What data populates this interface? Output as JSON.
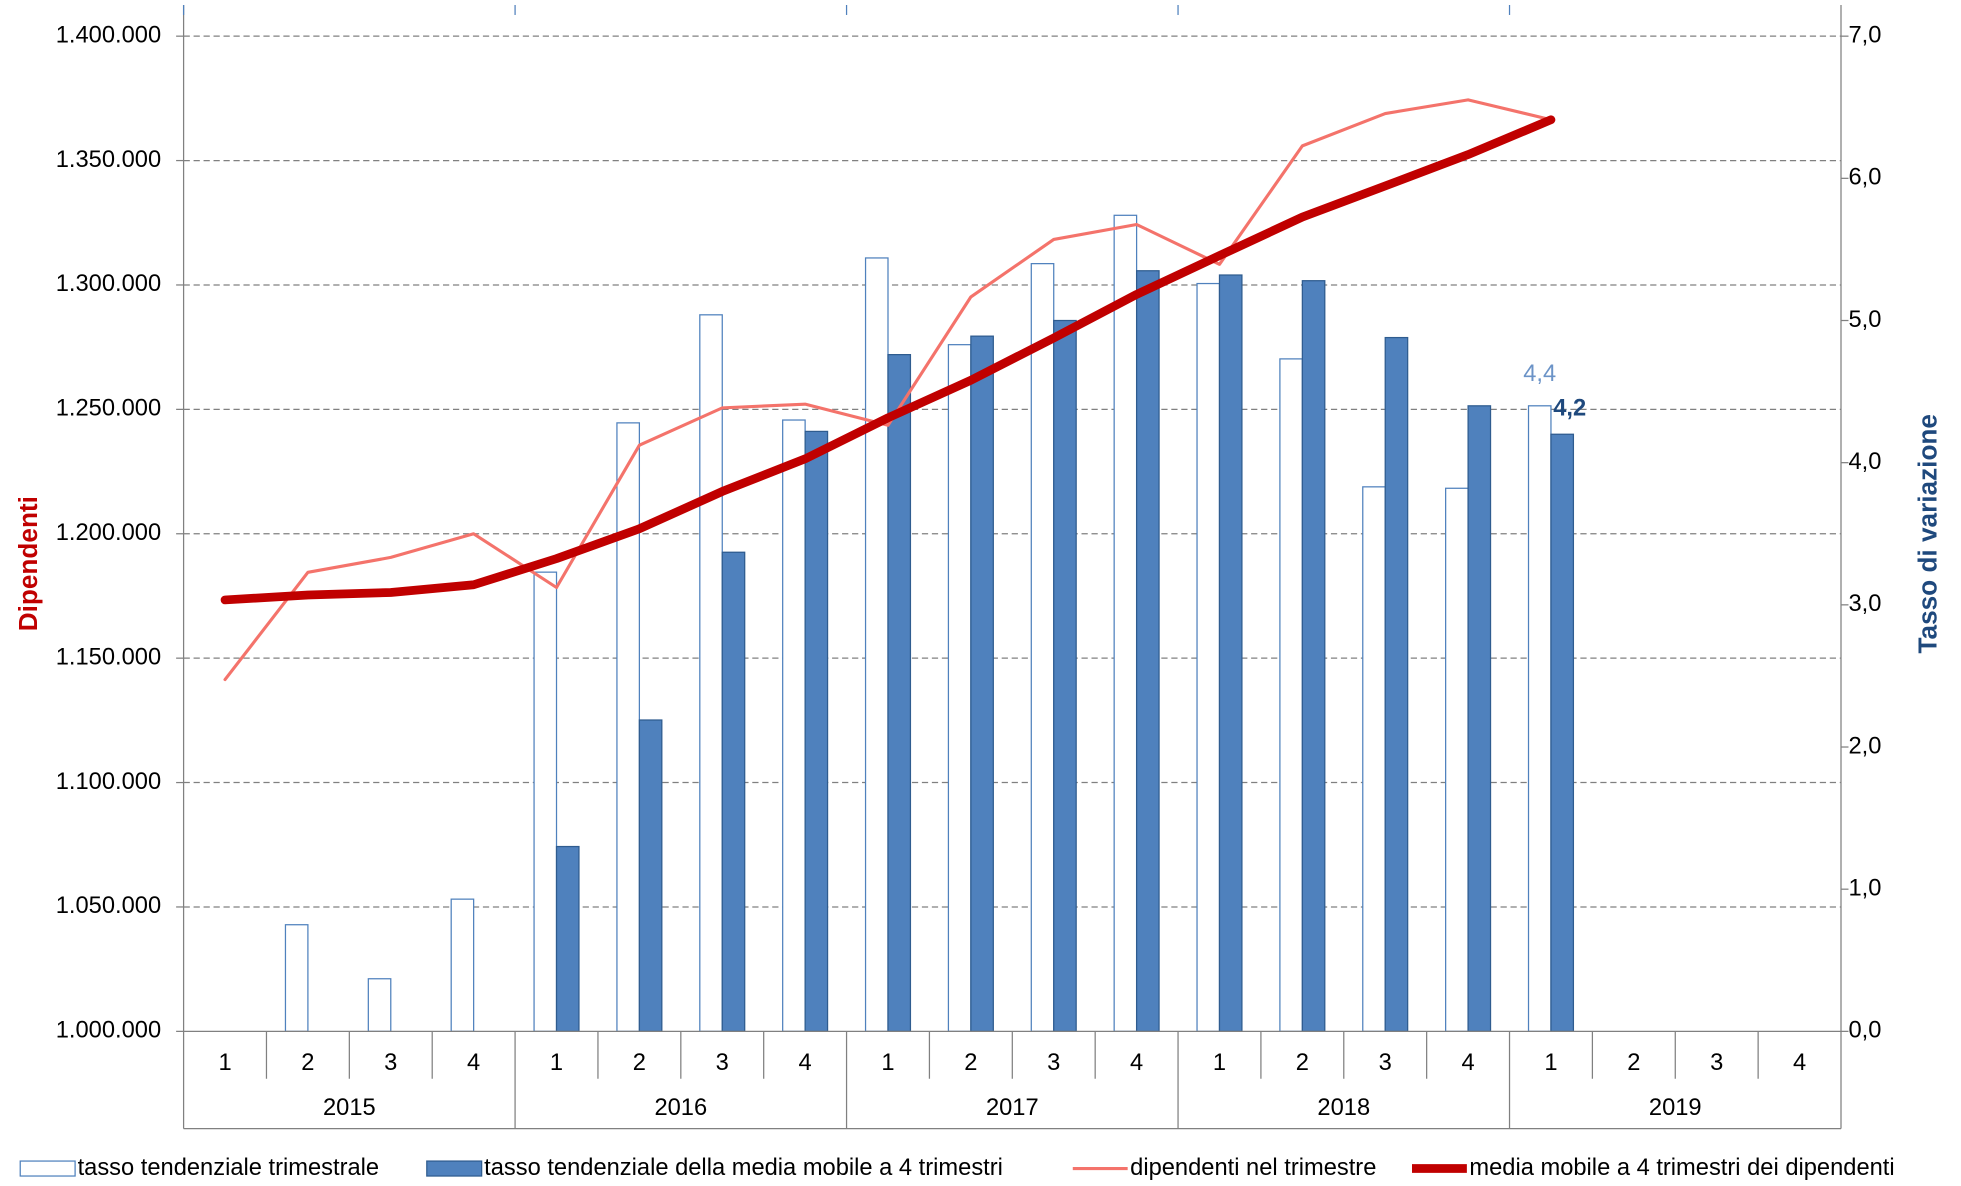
{
  "chart_data": {
    "type": "bar-line",
    "categories": [
      "1",
      "2",
      "3",
      "4",
      "1",
      "2",
      "3",
      "4",
      "1",
      "2",
      "3",
      "4",
      "1",
      "2",
      "3",
      "4",
      "1",
      "2",
      "3",
      "4"
    ],
    "groups": [
      "2015",
      "2016",
      "2017",
      "2018",
      "2019"
    ],
    "ylabel": "Dipendenti",
    "y2label": "Tasso di variazione",
    "ylim": [
      1000000,
      1400000
    ],
    "yticks": [
      {
        "value": 1000000,
        "label": "1.000.000"
      },
      {
        "value": 1050000,
        "label": "1.050.000"
      },
      {
        "value": 1100000,
        "label": "1.100.000"
      },
      {
        "value": 1150000,
        "label": "1.150.000"
      },
      {
        "value": 1200000,
        "label": "1.200.000"
      },
      {
        "value": 1250000,
        "label": "1.250.000"
      },
      {
        "value": 1300000,
        "label": "1.300.000"
      },
      {
        "value": 1350000,
        "label": "1.350.000"
      },
      {
        "value": 1400000,
        "label": "1.400.000"
      }
    ],
    "y2lim": [
      0,
      7
    ],
    "y2ticks": [
      {
        "value": 0,
        "label": "0,0"
      },
      {
        "value": 1,
        "label": "1,0"
      },
      {
        "value": 2,
        "label": "2,0"
      },
      {
        "value": 3,
        "label": "3,0"
      },
      {
        "value": 4,
        "label": "4,0"
      },
      {
        "value": 5,
        "label": "5,0"
      },
      {
        "value": 6,
        "label": "6,0"
      },
      {
        "value": 7,
        "label": "7,0"
      }
    ],
    "grid": true,
    "legend": "bottom",
    "series": [
      {
        "name": "tasso tendenziale trimestrale",
        "type": "bar",
        "style": "hollow",
        "color": "#4f81bd",
        "axis": "y2",
        "values": [
          null,
          0.75,
          0.37,
          0.93,
          3.23,
          4.28,
          5.04,
          4.3,
          5.44,
          4.83,
          5.4,
          5.74,
          5.26,
          4.73,
          3.83,
          3.82,
          4.4,
          null,
          null,
          null
        ],
        "value_labels": [
          null,
          null,
          null,
          null,
          null,
          null,
          null,
          null,
          null,
          null,
          null,
          null,
          null,
          null,
          null,
          null,
          "4,4",
          null,
          null,
          null
        ]
      },
      {
        "name": "tasso tendenziale della media mobile a 4 trimestri",
        "type": "bar",
        "style": "filled",
        "color": "#4f81bd",
        "axis": "y2",
        "values": [
          null,
          null,
          null,
          null,
          1.3,
          2.19,
          3.37,
          4.22,
          4.76,
          4.89,
          5.0,
          5.35,
          5.32,
          5.28,
          4.88,
          4.4,
          4.2,
          null,
          null,
          null
        ],
        "value_labels": [
          null,
          null,
          null,
          null,
          null,
          null,
          null,
          null,
          null,
          null,
          null,
          null,
          null,
          null,
          null,
          null,
          "4,2",
          null,
          null,
          null
        ]
      },
      {
        "name": "dipendenti nel trimestre",
        "type": "line",
        "width": 2.5,
        "color": "#f4736b",
        "values": [
          1141400,
          1184500,
          1190500,
          1200000,
          1178400,
          1235600,
          1250600,
          1252100,
          1243600,
          1295200,
          1318300,
          1324300,
          1308300,
          1355900,
          1368900,
          1374400,
          1366400,
          null,
          null,
          null
        ]
      },
      {
        "name": "media mobile a 4 trimestri dei dipendenti",
        "type": "line",
        "width": 7,
        "color": "#c00000",
        "values": [
          1173400,
          1175400,
          1176400,
          1179500,
          1190000,
          1202000,
          1217000,
          1230100,
          1246600,
          1261700,
          1278700,
          1296200,
          1311800,
          1327300,
          1339800,
          1352400,
          1366400,
          null,
          null,
          null
        ]
      }
    ]
  }
}
